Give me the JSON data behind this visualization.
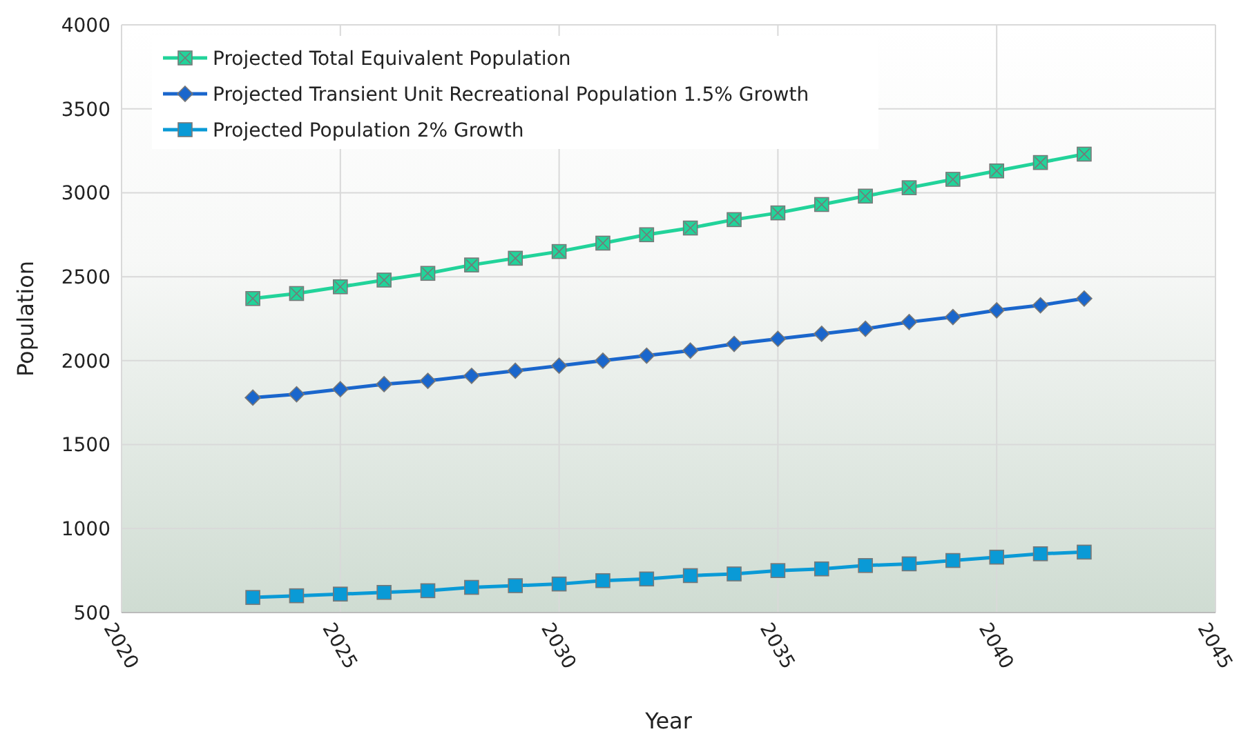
{
  "chart_data": {
    "type": "line",
    "xlabel": "Year",
    "ylabel": "Population",
    "x": [
      2023,
      2024,
      2025,
      2026,
      2027,
      2028,
      2029,
      2030,
      2031,
      2032,
      2033,
      2034,
      2035,
      2036,
      2037,
      2038,
      2039,
      2040,
      2041,
      2042
    ],
    "series": [
      {
        "name": "Projected Total Equivalent Population",
        "color": "#22d39a",
        "marker": "square",
        "values": [
          2370,
          2400,
          2440,
          2480,
          2520,
          2570,
          2610,
          2650,
          2700,
          2750,
          2790,
          2840,
          2880,
          2930,
          2980,
          3030,
          3080,
          3130,
          3180,
          3230
        ]
      },
      {
        "name": "Projected Transient Unit Recreational Population 1.5% Growth",
        "color": "#1a66cc",
        "marker": "diamond",
        "values": [
          1780,
          1800,
          1830,
          1860,
          1880,
          1910,
          1940,
          1970,
          2000,
          2030,
          2060,
          2100,
          2130,
          2160,
          2190,
          2230,
          2260,
          2300,
          2330,
          2370
        ]
      },
      {
        "name": "Projected Population 2% Growth",
        "color": "#0a9ad6",
        "marker": "square",
        "values": [
          590,
          600,
          610,
          620,
          630,
          650,
          660,
          670,
          690,
          700,
          720,
          730,
          750,
          760,
          780,
          790,
          810,
          830,
          850,
          860
        ]
      }
    ],
    "xlim": [
      2020,
      2045
    ],
    "xticks": [
      2020,
      2025,
      2030,
      2035,
      2040,
      2045
    ],
    "ylim": [
      500,
      4000
    ],
    "yticks": [
      500,
      1000,
      1500,
      2000,
      2500,
      3000,
      3500,
      4000
    ],
    "grid": true,
    "legend": "top left",
    "line_style": "solid"
  }
}
